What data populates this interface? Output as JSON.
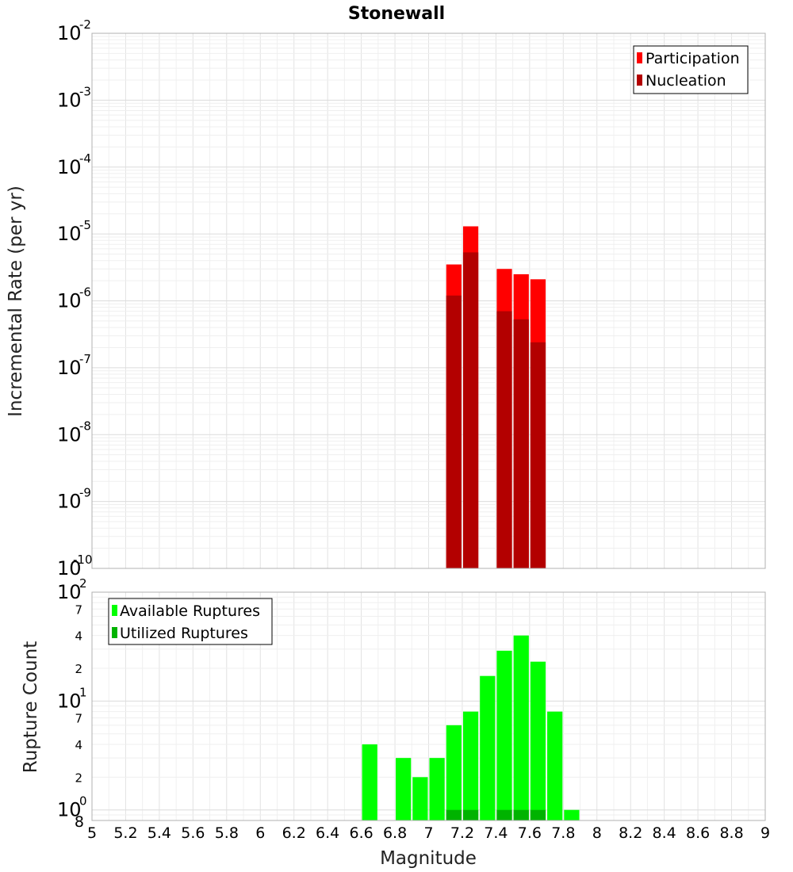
{
  "chart_data": [
    {
      "type": "bar",
      "title": "Stonewall",
      "xlabel": "Magnitude",
      "ylabel": "Incremental Rate (per yr)",
      "yscale": "log",
      "ylim": [
        1e-10,
        0.01
      ],
      "xlim": [
        5,
        9
      ],
      "bin_width": 0.1,
      "legend_position": "top-right",
      "y_ticks": [
        {
          "base": "10",
          "exp": "-10"
        },
        {
          "base": "10",
          "exp": "-9"
        },
        {
          "base": "10",
          "exp": "-8"
        },
        {
          "base": "10",
          "exp": "-7"
        },
        {
          "base": "10",
          "exp": "-6"
        },
        {
          "base": "10",
          "exp": "-5"
        },
        {
          "base": "10",
          "exp": "-4"
        },
        {
          "base": "10",
          "exp": "-3"
        },
        {
          "base": "10",
          "exp": "-2"
        }
      ],
      "series": [
        {
          "name": "Participation",
          "color": "#ff0000",
          "x": [
            7.15,
            7.25,
            7.45,
            7.55,
            7.65
          ],
          "values": [
            3.5e-06,
            1.3e-05,
            3e-06,
            2.5e-06,
            2.1e-06
          ]
        },
        {
          "name": "Nucleation",
          "color": "#b30000",
          "x": [
            7.15,
            7.25,
            7.45,
            7.55,
            7.65
          ],
          "values": [
            1.2e-06,
            5.3e-06,
            7e-07,
            5.3e-07,
            2.4e-07
          ]
        }
      ]
    },
    {
      "type": "bar",
      "xlabel": "Magnitude",
      "ylabel": "Rupture Count",
      "yscale": "log",
      "ylim": [
        0.8,
        100
      ],
      "xlim": [
        5,
        9
      ],
      "bin_width": 0.1,
      "legend_position": "top-left",
      "y_ticks": [
        {
          "value": 1,
          "base": "10",
          "exp": "0"
        },
        {
          "value": 2,
          "label": "2"
        },
        {
          "value": 4,
          "label": "4"
        },
        {
          "value": 7,
          "label": "7"
        },
        {
          "value": 10,
          "base": "10",
          "exp": "1"
        },
        {
          "value": 20,
          "label": "2"
        },
        {
          "value": 40,
          "label": "4"
        },
        {
          "value": 70,
          "label": "7"
        },
        {
          "value": 100,
          "base": "10",
          "exp": "2"
        }
      ],
      "y_min_label": "8",
      "x_ticks": [
        "5",
        "5.2",
        "5.4",
        "5.6",
        "5.8",
        "6",
        "6.2",
        "6.4",
        "6.6",
        "6.8",
        "7",
        "7.2",
        "7.4",
        "7.6",
        "7.8",
        "8",
        "8.2",
        "8.4",
        "8.6",
        "8.8",
        "9"
      ],
      "series": [
        {
          "name": "Available Ruptures",
          "color": "#00ff00",
          "x": [
            6.65,
            6.85,
            6.95,
            7.05,
            7.15,
            7.25,
            7.35,
            7.45,
            7.55,
            7.65,
            7.75,
            7.85
          ],
          "values": [
            4,
            3,
            2,
            3,
            6,
            8,
            17,
            29,
            40,
            23,
            8,
            1
          ]
        },
        {
          "name": "Utilized Ruptures",
          "color": "#00b300",
          "x": [
            7.15,
            7.25,
            7.45,
            7.55,
            7.65
          ],
          "values": [
            1,
            1,
            1,
            1,
            1
          ]
        }
      ]
    }
  ]
}
